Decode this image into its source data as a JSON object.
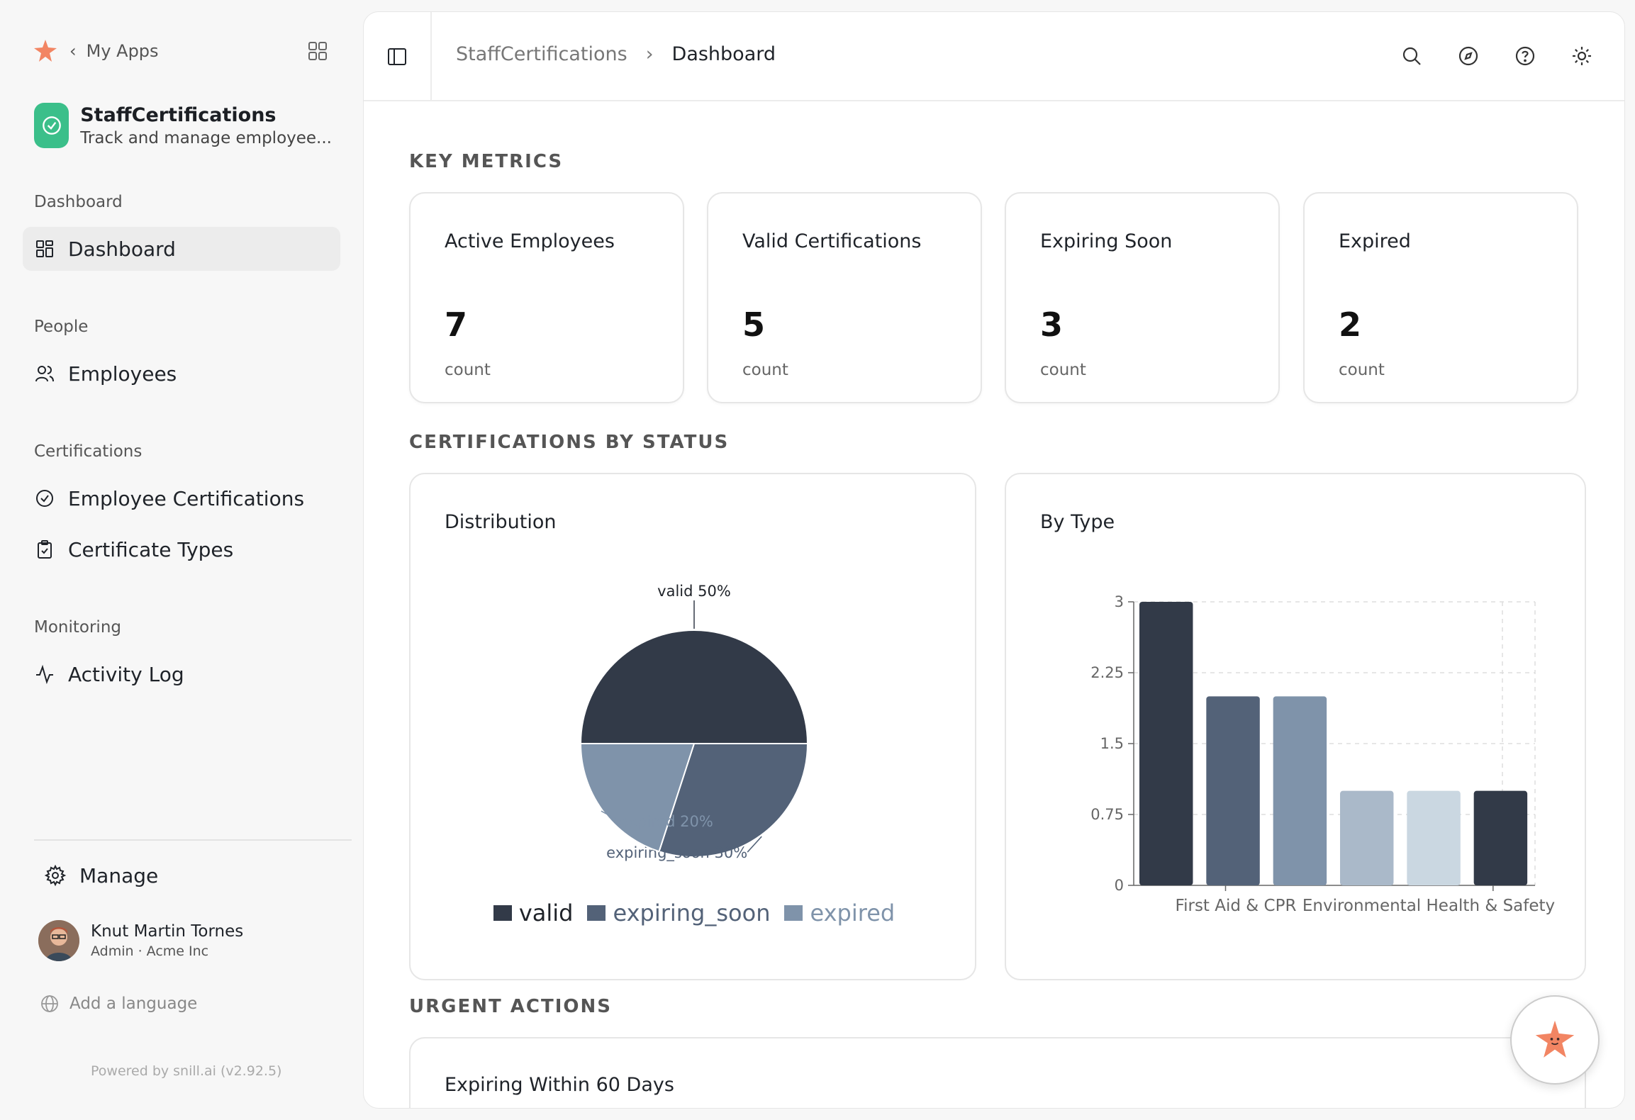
{
  "sidebar": {
    "my_apps": "My Apps",
    "app_name": "StaffCertifications",
    "app_subtitle": "Track and manage employee...",
    "sections": [
      {
        "label": "Dashboard",
        "items": [
          {
            "label": "Dashboard",
            "icon": "dashboard-icon",
            "active": true
          }
        ]
      },
      {
        "label": "People",
        "items": [
          {
            "label": "Employees",
            "icon": "users-icon"
          }
        ]
      },
      {
        "label": "Certifications",
        "items": [
          {
            "label": "Employee Certifications",
            "icon": "badge-check-icon"
          },
          {
            "label": "Certificate Types",
            "icon": "clipboard-icon"
          }
        ]
      },
      {
        "label": "Monitoring",
        "items": [
          {
            "label": "Activity Log",
            "icon": "activity-icon"
          }
        ]
      }
    ],
    "manage": "Manage",
    "user_name": "Knut Martin Tornes",
    "user_role": "Admin · Acme Inc",
    "add_language": "Add a language",
    "powered_by": "Powered by snill.ai (v2.92.5)"
  },
  "topbar": {
    "crumb_app": "StaffCertifications",
    "crumb_sep": "›",
    "crumb_page": "Dashboard"
  },
  "sections": {
    "key_metrics": "KEY METRICS",
    "by_status": "CERTIFICATIONS BY STATUS",
    "urgent": "URGENT ACTIONS"
  },
  "metrics": [
    {
      "title": "Active Employees",
      "value": "7",
      "unit": "count"
    },
    {
      "title": "Valid Certifications",
      "value": "5",
      "unit": "count"
    },
    {
      "title": "Expiring Soon",
      "value": "3",
      "unit": "count"
    },
    {
      "title": "Expired",
      "value": "2",
      "unit": "count"
    }
  ],
  "panels": {
    "distribution_title": "Distribution",
    "bytype_title": "By Type"
  },
  "bottom": {
    "title": "Expiring Within 60 Days"
  },
  "colors": {
    "valid": "#323a48",
    "expiring_soon": "#536278",
    "expired": "#7f93aa",
    "bar_c": "#aab9c9",
    "bar_d": "#cad7e1",
    "accent_green": "#3bbf8a",
    "brand_orange": "#f28563"
  },
  "chart_data": [
    {
      "type": "pie",
      "title": "Distribution",
      "categories": [
        "valid",
        "expiring_soon",
        "expired"
      ],
      "values": [
        50,
        30,
        20
      ],
      "labels": [
        "valid 50%",
        "expiring_soon 30%",
        "expired 20%"
      ],
      "legend": "bottom"
    },
    {
      "type": "bar",
      "title": "By Type",
      "categories": [
        "First Aid & CPR",
        "",
        "",
        "",
        "",
        "Environmental Health & Safety"
      ],
      "x_tick_labels": [
        "First Aid & CPR",
        "Environmental Health & Safety"
      ],
      "values": [
        3,
        2,
        2,
        1,
        1,
        1
      ],
      "ylim": [
        0,
        3
      ],
      "yticks": [
        "0",
        "0.75",
        "1.5",
        "2.25",
        "3"
      ],
      "grid": true
    }
  ]
}
